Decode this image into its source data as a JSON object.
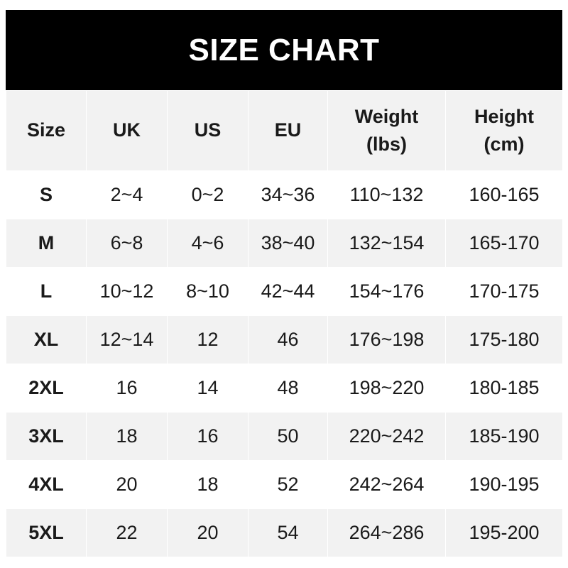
{
  "title": "SIZE CHART",
  "columns": [
    "Size",
    "UK",
    "US",
    "EU",
    "Weight\n(lbs)",
    "Height\n(cm)"
  ],
  "rows": [
    [
      "S",
      "2~4",
      "0~2",
      "34~36",
      "110~132",
      "160-165"
    ],
    [
      "M",
      "6~8",
      "4~6",
      "38~40",
      "132~154",
      "165-170"
    ],
    [
      "L",
      "10~12",
      "8~10",
      "42~44",
      "154~176",
      "170-175"
    ],
    [
      "XL",
      "12~14",
      "12",
      "46",
      "176~198",
      "175-180"
    ],
    [
      "2XL",
      "16",
      "14",
      "48",
      "198~220",
      "180-185"
    ],
    [
      "3XL",
      "18",
      "16",
      "50",
      "220~242",
      "185-190"
    ],
    [
      "4XL",
      "20",
      "18",
      "52",
      "242~264",
      "190-195"
    ],
    [
      "5XL",
      "22",
      "20",
      "54",
      "264~286",
      "195-200"
    ]
  ],
  "colors": {
    "header_bg": "#000000",
    "stripe": "#f2f2f2",
    "text": "#1a1a1a"
  }
}
